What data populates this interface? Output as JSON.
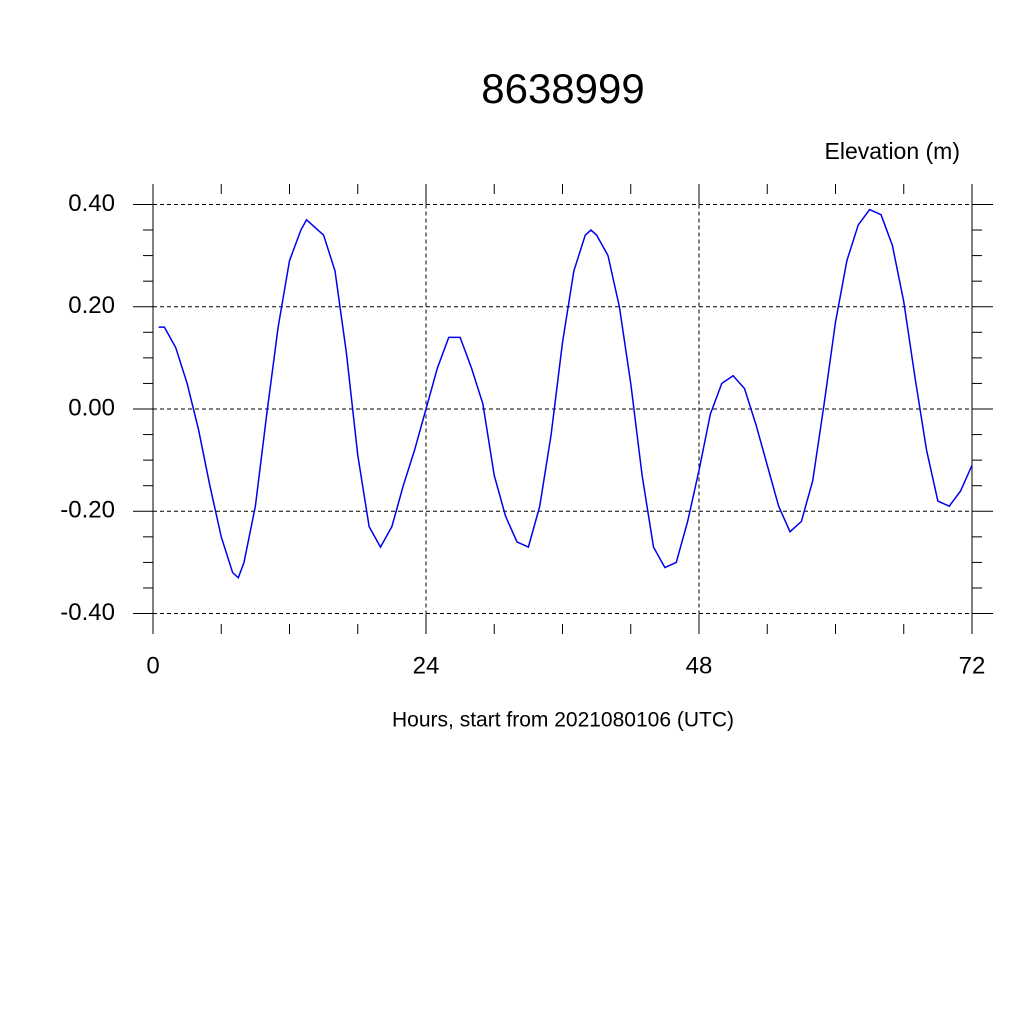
{
  "chart_data": {
    "type": "line",
    "title": "8638999",
    "ylabel": "Elevation (m)",
    "xlabel": "Hours, start from 2021080106 (UTC)",
    "x": [
      0.5,
      1,
      2,
      3,
      4,
      5,
      6,
      7,
      7.5,
      8,
      9,
      10,
      11,
      12,
      13,
      13.5,
      14,
      15,
      16,
      17,
      18,
      19,
      20,
      21,
      22,
      23,
      24,
      25,
      26,
      27,
      28,
      29,
      30,
      31,
      32,
      33,
      34,
      35,
      36,
      37,
      38,
      38.5,
      39,
      40,
      41,
      42,
      43,
      44,
      45,
      46,
      47,
      48,
      49,
      50,
      51,
      52,
      53,
      54,
      55,
      56,
      57,
      58,
      59,
      60,
      61,
      62,
      63,
      64,
      65,
      66,
      67,
      68,
      69,
      70,
      71,
      72
    ],
    "series": [
      {
        "name": "Elevation",
        "color": "#0000ee",
        "values": [
          0.16,
          0.16,
          0.12,
          0.05,
          -0.04,
          -0.15,
          -0.25,
          -0.32,
          -0.33,
          -0.3,
          -0.19,
          -0.01,
          0.16,
          0.29,
          0.35,
          0.37,
          0.36,
          0.34,
          0.27,
          0.11,
          -0.09,
          -0.23,
          -0.27,
          -0.23,
          -0.15,
          -0.08,
          0,
          0.08,
          0.14,
          0.14,
          0.08,
          0.01,
          -0.13,
          -0.21,
          -0.26,
          -0.27,
          -0.19,
          -0.05,
          0.13,
          0.27,
          0.34,
          0.35,
          0.34,
          0.3,
          0.2,
          0.05,
          -0.13,
          -0.27,
          -0.31,
          -0.3,
          -0.22,
          -0.12,
          -0.01,
          0.05,
          0.065,
          0.04,
          -0.03,
          -0.11,
          -0.19,
          -0.24,
          -0.22,
          -0.14,
          0.01,
          0.17,
          0.29,
          0.36,
          0.39,
          0.38,
          0.32,
          0.21,
          0.06,
          -0.08,
          -0.18,
          -0.19,
          -0.16,
          -0.11
        ]
      }
    ],
    "xlim": [
      0,
      72
    ],
    "ylim": [
      -0.44,
      0.44
    ],
    "xticks": [
      0,
      24,
      48,
      72
    ],
    "yticks": [
      {
        "value": -0.4,
        "label": "-0.40"
      },
      {
        "value": -0.2,
        "label": "-0.20"
      },
      {
        "value": 0,
        "label": "0.00"
      },
      {
        "value": 0.2,
        "label": "0.20"
      },
      {
        "value": 0.4,
        "label": "0.40"
      }
    ],
    "xminorticks": [
      6,
      12,
      18,
      30,
      36,
      42,
      54,
      60,
      66
    ],
    "yminorticks": [
      -0.35,
      -0.3,
      -0.25,
      -0.15,
      -0.1,
      -0.05,
      0.05,
      0.1,
      0.15,
      0.25,
      0.3,
      0.35
    ],
    "grid": true
  }
}
